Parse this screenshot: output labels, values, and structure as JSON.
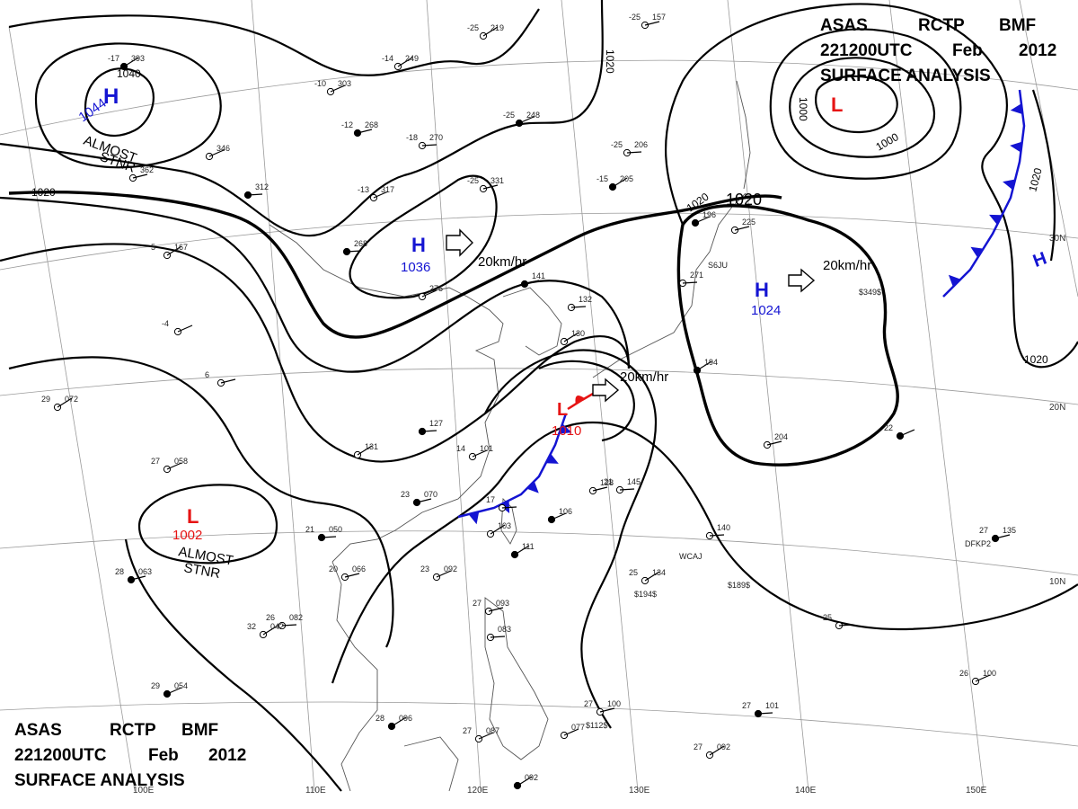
{
  "header": {
    "line1": [
      "ASAS",
      "RCTP",
      "BMF"
    ],
    "line2": [
      "221200UTC",
      "Feb",
      "2012"
    ],
    "line3": "SURFACE  ANALYSIS"
  },
  "footer": {
    "line1": [
      "ASAS",
      "RCTP",
      "BMF"
    ],
    "line2": [
      "221200UTC",
      "Feb",
      "2012"
    ],
    "line3": "SURFACE  ANALYSIS"
  },
  "colors": {
    "high": "#1414d2",
    "low": "#e61414",
    "cold_front": "#1414d2",
    "warm_front": "#e61414",
    "isobar": "#000000"
  },
  "pressure_centers": [
    {
      "id": "high-nw",
      "type": "H",
      "value": "1044",
      "note": [
        "ALMOST",
        "STNR"
      ]
    },
    {
      "id": "high-n",
      "type": "H",
      "value": "1036",
      "speed": "20km/hr"
    },
    {
      "id": "high-e",
      "type": "H",
      "value": "1024",
      "speed": "20km/hr"
    },
    {
      "id": "low-ne",
      "type": "L",
      "value": ""
    },
    {
      "id": "low-w",
      "type": "L",
      "value": "1002",
      "note": [
        "ALMOST",
        "STNR"
      ]
    },
    {
      "id": "low-center",
      "type": "L",
      "value": "1010",
      "speed": "20km/hr"
    },
    {
      "id": "high-far-e",
      "type": "H",
      "value": ""
    }
  ],
  "isobar_labels": [
    "1040",
    "1020",
    "1020",
    "1020",
    "1020",
    "1000",
    "1000",
    "1020",
    "1020",
    "1020"
  ],
  "lat_labels": [
    "30N",
    "20N",
    "10N"
  ],
  "lon_labels": [
    "100E",
    "110E",
    "120E",
    "130E",
    "140E",
    "150E"
  ],
  "stations": [
    {
      "t": "-17",
      "p": "393"
    },
    {
      "t": "",
      "p": "346"
    },
    {
      "t": "",
      "p": "362"
    },
    {
      "t": "",
      "p": "312"
    },
    {
      "t": "-14",
      "p": "249"
    },
    {
      "t": "-10",
      "p": "303"
    },
    {
      "t": "-12",
      "p": "268"
    },
    {
      "t": "-18",
      "p": "270"
    },
    {
      "t": "-25",
      "p": "219"
    },
    {
      "t": "-25",
      "p": "248"
    },
    {
      "t": "-25",
      "p": "157"
    },
    {
      "t": "-25",
      "p": "206"
    },
    {
      "t": "-15",
      "p": "205"
    },
    {
      "t": "-13",
      "p": "317"
    },
    {
      "t": "-25",
      "p": "331"
    },
    {
      "t": "",
      "p": "268"
    },
    {
      "t": "5",
      "p": "167"
    },
    {
      "t": "",
      "p": "276"
    },
    {
      "t": "",
      "p": "141"
    },
    {
      "t": "",
      "p": "132"
    },
    {
      "t": "",
      "p": "130"
    },
    {
      "t": "",
      "p": "196"
    },
    {
      "t": "",
      "p": "225"
    },
    {
      "t": "",
      "p": "271"
    },
    {
      "t": "",
      "p": "194"
    },
    {
      "t": "-4",
      "p": ""
    },
    {
      "t": "6",
      "p": ""
    },
    {
      "t": "",
      "p": "127"
    },
    {
      "t": "",
      "p": "131"
    },
    {
      "t": "14",
      "p": "101"
    },
    {
      "t": "23",
      "p": "070"
    },
    {
      "t": "17",
      "p": ""
    },
    {
      "t": "",
      "p": "103"
    },
    {
      "t": "",
      "p": "106"
    },
    {
      "t": "",
      "p": "128"
    },
    {
      "t": "21",
      "p": "145"
    },
    {
      "t": "",
      "p": "111"
    },
    {
      "t": "23",
      "p": "092"
    },
    {
      "t": "20",
      "p": "066"
    },
    {
      "t": "21",
      "p": "050"
    },
    {
      "t": "29",
      "p": "072"
    },
    {
      "t": "27",
      "p": "058"
    },
    {
      "t": "28",
      "p": "063"
    },
    {
      "t": "26",
      "p": "082"
    },
    {
      "t": "32",
      "p": "042"
    },
    {
      "t": "29",
      "p": "054"
    },
    {
      "t": "27",
      "p": "093"
    },
    {
      "t": "",
      "p": "083"
    },
    {
      "t": "28",
      "p": "096"
    },
    {
      "t": "27",
      "p": "087"
    },
    {
      "t": "27",
      "p": "100"
    },
    {
      "t": "27",
      "p": "101"
    },
    {
      "t": "27",
      "p": "092"
    },
    {
      "t": "26",
      "p": "100"
    },
    {
      "t": "27",
      "p": "135"
    },
    {
      "t": "",
      "p": "140"
    },
    {
      "t": "25",
      "p": "134"
    },
    {
      "t": "22",
      "p": ""
    },
    {
      "t": "",
      "p": "204"
    },
    {
      "t": "25",
      "p": ""
    },
    {
      "t": "",
      "p": "092"
    },
    {
      "t": "",
      "p": "077"
    }
  ],
  "ship_ids": [
    "S6JU",
    "WCAJ",
    "DFKP2",
    "$349$",
    "$194$",
    "$189$",
    "$112$"
  ]
}
